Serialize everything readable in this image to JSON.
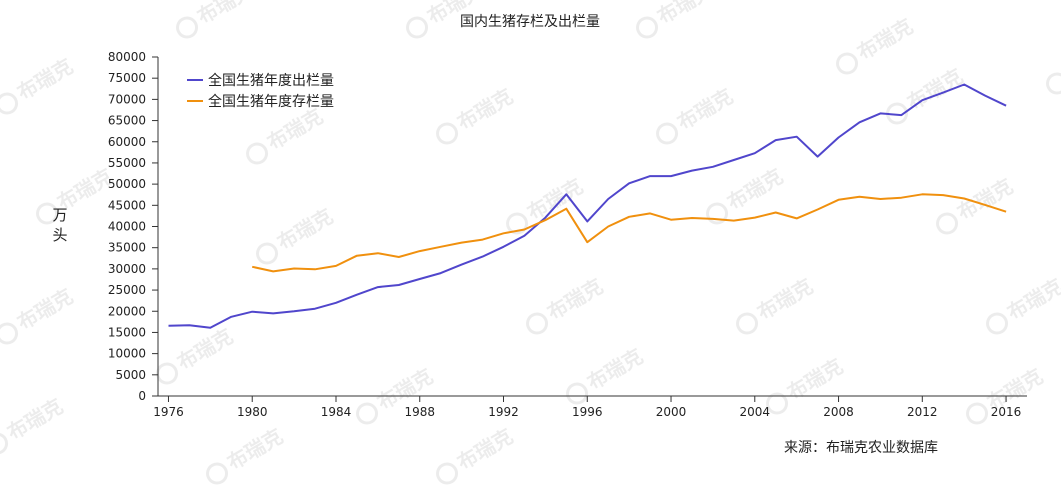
{
  "chart_data": {
    "type": "line",
    "title": "国内生猪存栏及出栏量",
    "ylabel": "万头",
    "source": "来源：布瑞克农业数据库",
    "watermark": "布瑞克",
    "ylim": [
      0,
      80000
    ],
    "xlim": [
      1975.5,
      2017
    ],
    "yticks": [
      0,
      5000,
      10000,
      15000,
      20000,
      25000,
      30000,
      35000,
      40000,
      45000,
      50000,
      55000,
      60000,
      65000,
      70000,
      75000,
      80000
    ],
    "xticks": [
      1976,
      1980,
      1984,
      1988,
      1992,
      1996,
      2000,
      2004,
      2008,
      2012,
      2016
    ],
    "grid": false,
    "legend_position": "top-left",
    "series": [
      {
        "name": "全国生猪年度出栏量",
        "color": "#5046cc",
        "x": [
          1976,
          1977,
          1978,
          1979,
          1980,
          1981,
          1982,
          1983,
          1984,
          1985,
          1986,
          1987,
          1988,
          1989,
          1990,
          1991,
          1992,
          1993,
          1994,
          1995,
          1996,
          1997,
          1998,
          1999,
          2000,
          2001,
          2002,
          2003,
          2004,
          2005,
          2006,
          2007,
          2008,
          2009,
          2010,
          2011,
          2012,
          2013,
          2014,
          2015,
          2016
        ],
        "values": [
          16600,
          16700,
          16100,
          18700,
          19900,
          19500,
          20000,
          20600,
          22000,
          23900,
          25700,
          26200,
          27600,
          29000,
          31000,
          32900,
          35200,
          37800,
          42100,
          47600,
          41200,
          46500,
          50200,
          51900,
          51900,
          53200,
          54100,
          55700,
          57300,
          60400,
          61200,
          56500,
          61000,
          64600,
          66700,
          66300,
          69800,
          71600,
          73500,
          70900,
          68500
        ]
      },
      {
        "name": "全国生猪年度存栏量",
        "color": "#f0900e",
        "x": [
          1980,
          1981,
          1982,
          1983,
          1984,
          1985,
          1986,
          1987,
          1988,
          1989,
          1990,
          1991,
          1992,
          1993,
          1994,
          1995,
          1996,
          1997,
          1998,
          1999,
          2000,
          2001,
          2002,
          2003,
          2004,
          2005,
          2006,
          2007,
          2008,
          2009,
          2010,
          2011,
          2012,
          2013,
          2014,
          2015,
          2016
        ],
        "values": [
          30500,
          29400,
          30100,
          29900,
          30700,
          33100,
          33700,
          32800,
          34200,
          35200,
          36200,
          36900,
          38400,
          39300,
          41500,
          44200,
          36300,
          40000,
          42300,
          43100,
          41600,
          42000,
          41800,
          41400,
          42100,
          43300,
          41900,
          44000,
          46300,
          47000,
          46500,
          46800,
          47600,
          47400,
          46600,
          45100,
          43500
        ]
      }
    ]
  }
}
